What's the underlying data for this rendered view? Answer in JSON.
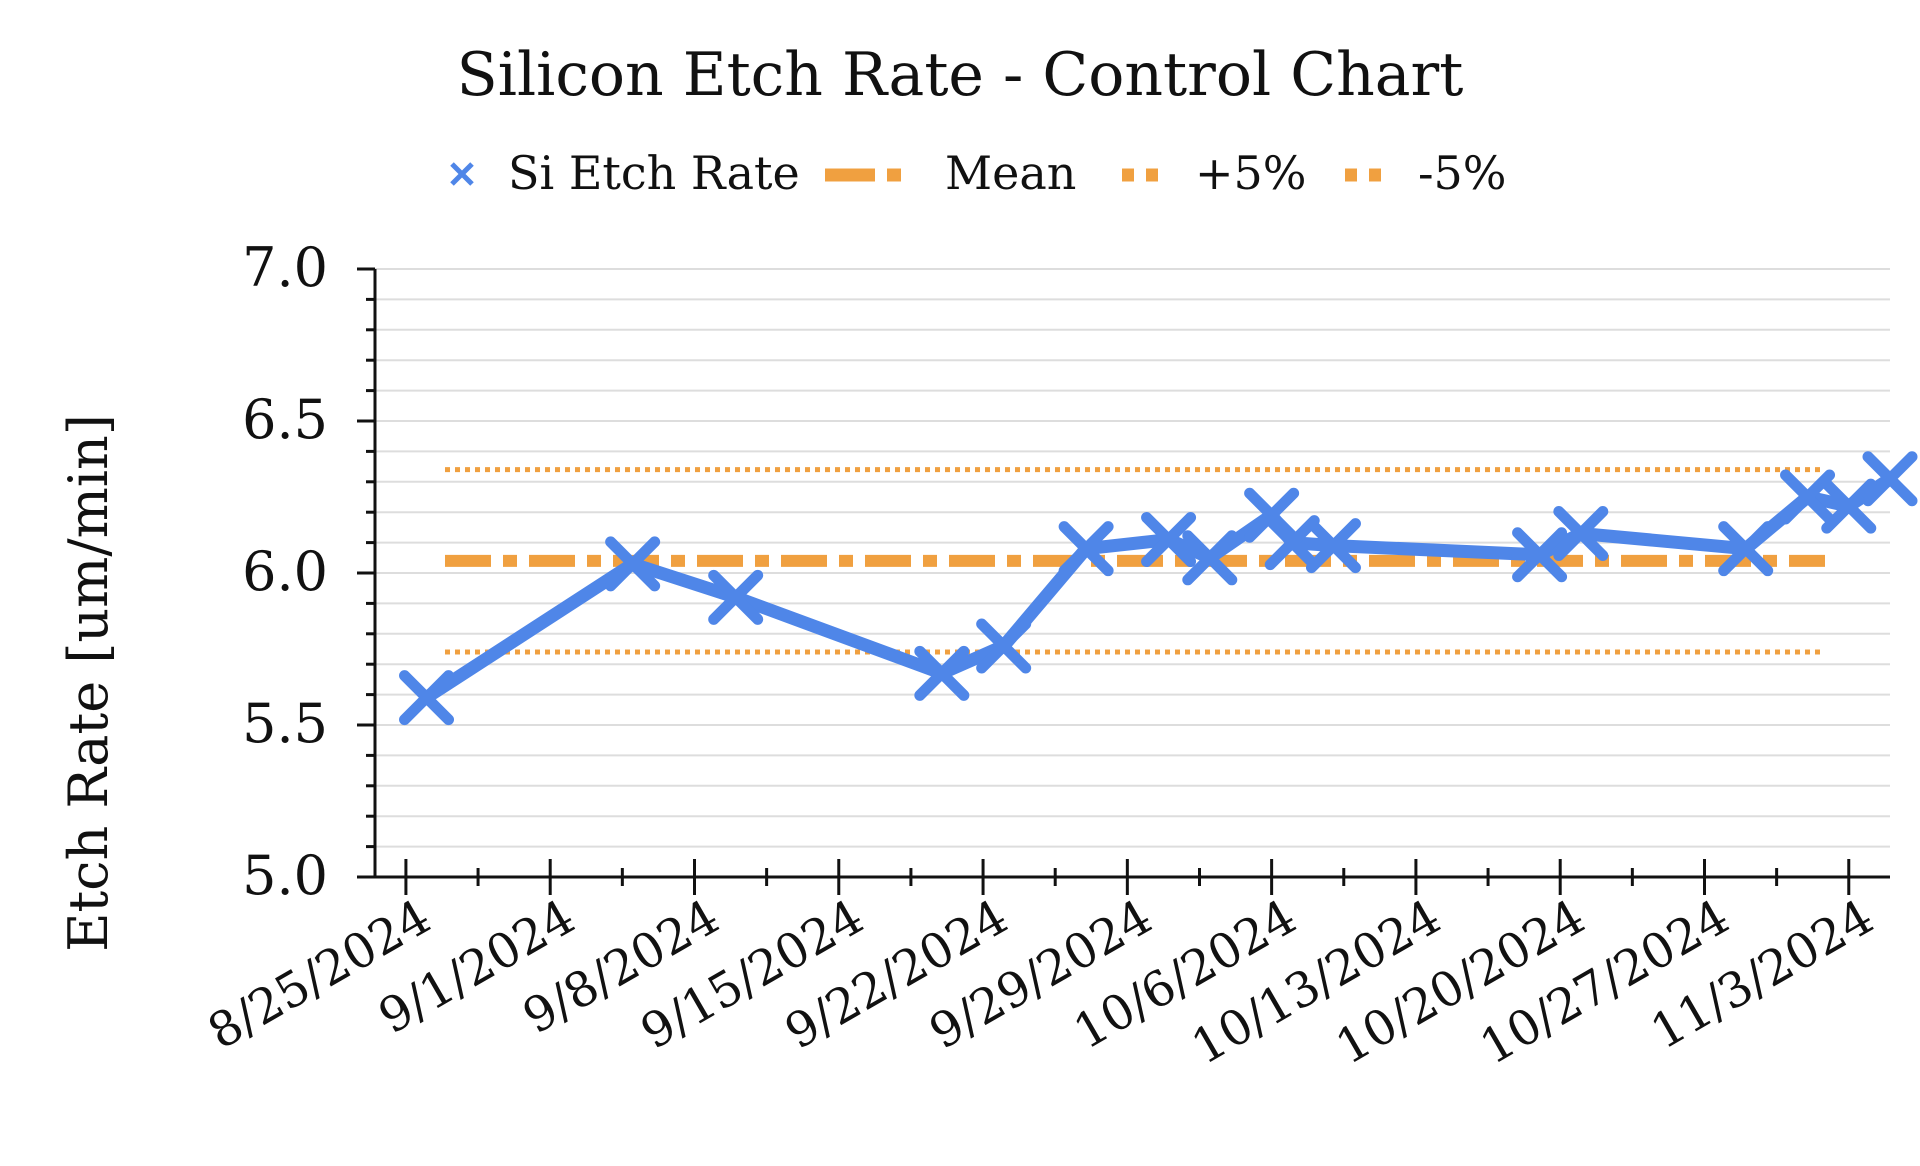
{
  "chart_data": {
    "type": "line",
    "title": "Silicon Etch Rate - Control Chart",
    "xlabel": "",
    "ylabel": "Etch Rate [um/min]",
    "ylim": [
      5.0,
      7.0
    ],
    "yticks": [
      "5.0",
      "5.5",
      "6.0",
      "6.5",
      "7.0"
    ],
    "x_tick_labels": [
      "8/25/2024",
      "9/1/2024",
      "9/8/2024",
      "9/15/2024",
      "9/22/2024",
      "9/29/2024",
      "10/6/2024",
      "10/13/2024",
      "10/20/2024",
      "10/27/2024",
      "11/3/2024"
    ],
    "x_range_days": [
      -1.5,
      72
    ],
    "grid": true,
    "legend_position": "top",
    "legend": [
      "Si Etch Rate",
      "Mean",
      "+5%",
      "-5%"
    ],
    "series": [
      {
        "name": "Si Etch Rate",
        "color": "#4f86e8",
        "x_days_since_8_25_2024": [
          1,
          11,
          16,
          26,
          29,
          33,
          37,
          39,
          42,
          43,
          45,
          55,
          57,
          65,
          68,
          70,
          72
        ],
        "values": [
          5.59,
          6.03,
          5.92,
          5.67,
          5.76,
          6.08,
          6.11,
          6.05,
          6.19,
          6.1,
          6.09,
          6.06,
          6.13,
          6.08,
          6.25,
          6.22,
          6.31
        ]
      }
    ],
    "reference_lines": [
      {
        "name": "Mean",
        "value": 6.04,
        "color": "#f0a040",
        "style": "dash-dot"
      },
      {
        "name": "+5%",
        "value": 6.34,
        "color": "#f0a040",
        "style": "dotted"
      },
      {
        "name": "-5%",
        "value": 5.74,
        "color": "#f0a040",
        "style": "dotted"
      }
    ]
  }
}
